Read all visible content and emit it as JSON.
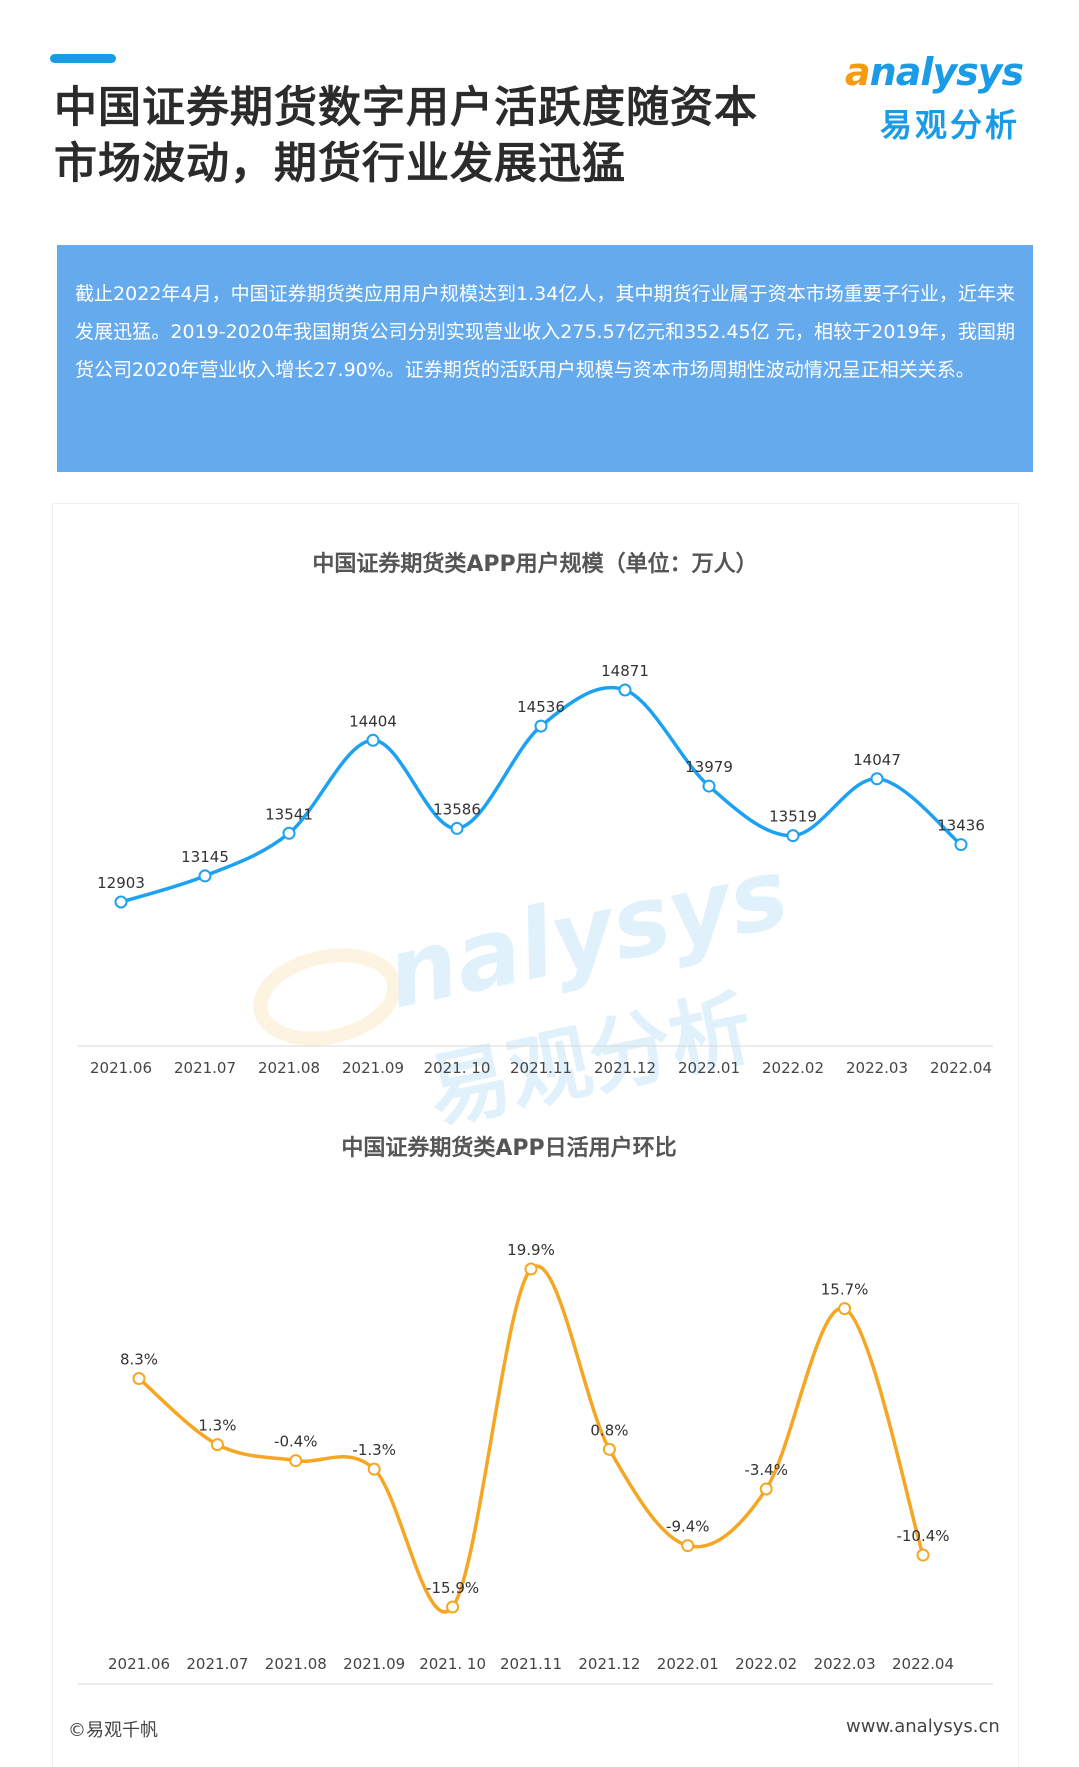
{
  "header": {
    "title_line1": "中国证券期货数字用户活跃度随资本",
    "title_line2": "市场波动，期货行业发展迅猛",
    "logo_en": "nalysys",
    "logo_en_initial": "a",
    "logo_cn": "易观分析",
    "accent_color": "#1a9be6"
  },
  "summary": {
    "text": "截止2022年4月，中国证券期货类应用用户规模达到1.34亿人，其中期货行业属于资本市场重要子行业，近年来发展迅猛。2019-2020年我国期货公司分别实现营业收入275.57亿元和352.45亿 元，相较于2019年，我国期货公司2020年营业收入增长27.90%。证券期货的活跃用户规模与资本市场周期性波动情况呈正相关关系。",
    "background": "#66aaee"
  },
  "watermark": {
    "en": "nalysys",
    "cn": "易观分析"
  },
  "chart_data": [
    {
      "type": "line",
      "title": "中国证券期货类APP用户规模（单位：万人）",
      "categories": [
        "2021.06",
        "2021.07",
        "2021.08",
        "2021.09",
        "2021. 10",
        "2021.11",
        "2021.12",
        "2022.01",
        "2022.02",
        "2022.03",
        "2022.04"
      ],
      "values": [
        12903,
        13145,
        13541,
        14404,
        13586,
        14536,
        14871,
        13979,
        13519,
        14047,
        13436
      ],
      "labels": [
        "12903",
        "13145",
        "13541",
        "14404",
        "13586",
        "14536",
        "14871",
        "13979",
        "13519",
        "14047",
        "13436"
      ],
      "color": "#1da1f2",
      "smooth": true,
      "grid": false
    },
    {
      "type": "line",
      "title": "中国证券期货类APP日活用户环比",
      "categories": [
        "2021.06",
        "2021.07",
        "2021.08",
        "2021.09",
        "2021. 10",
        "2021.11",
        "2021.12",
        "2022.01",
        "2022.02",
        "2022.03",
        "2022.04"
      ],
      "values": [
        8.3,
        1.3,
        -0.4,
        -1.3,
        -15.9,
        19.9,
        0.8,
        -9.4,
        -3.4,
        15.7,
        -10.4
      ],
      "labels": [
        "8.3%",
        "1.3%",
        "-0.4%",
        "-1.3%",
        "-15.9%",
        "19.9%",
        "0.8%",
        "-9.4%",
        "-3.4%",
        "15.7%",
        "-10.4%"
      ],
      "unit": "%",
      "color": "#f5a623",
      "smooth": true,
      "grid": false
    }
  ],
  "footer": {
    "copyright": "©易观千帆",
    "website": "www.analysys.cn"
  }
}
